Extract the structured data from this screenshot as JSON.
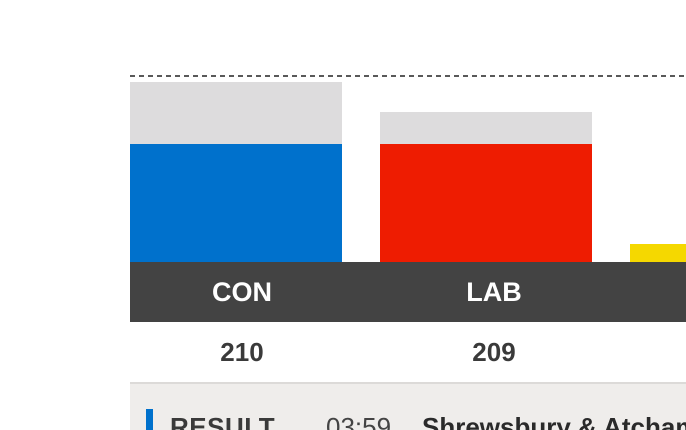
{
  "chart_data": {
    "type": "bar",
    "categories": [
      "CON",
      "LAB",
      ""
    ],
    "values": [
      210,
      209,
      null
    ],
    "ylim": [
      0,
      326
    ],
    "grid": false,
    "colors": {
      "CON": "#0071cc",
      "LAB": "#ee1c01",
      "third": "#f5d800",
      "projection": "#dddcdd",
      "label_band": "#434343"
    }
  },
  "ticker": {
    "status": "RESULT",
    "time": "03:59",
    "seat": "Shrewsbury & Atcham"
  }
}
